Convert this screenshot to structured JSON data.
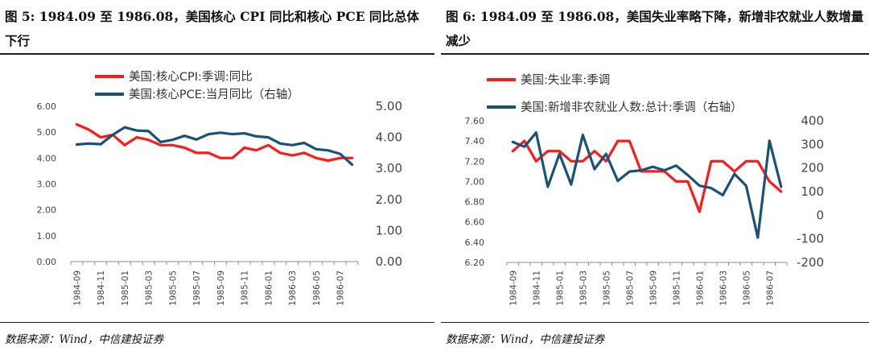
{
  "panels": [
    {
      "title": "图 5: 1984.09 至 1986.08，美国核心 CPI 同比和核心 PCE 同比总体下行",
      "source": "数据来源：Wind，中信建投证券"
    },
    {
      "title": "图 6: 1984.09 至 1986.08，美国失业率略下降，新增非农就业人数增量减少",
      "source": "数据来源：Wind，中信建投证券"
    }
  ],
  "chart_data": [
    {
      "type": "line",
      "x": [
        "1984-09",
        "1984-10",
        "1984-11",
        "1984-12",
        "1985-01",
        "1985-02",
        "1985-03",
        "1985-04",
        "1985-05",
        "1985-06",
        "1985-07",
        "1985-08",
        "1985-09",
        "1985-10",
        "1985-11",
        "1985-12",
        "1986-01",
        "1986-02",
        "1986-03",
        "1986-04",
        "1986-05",
        "1986-06",
        "1986-07",
        "1986-08"
      ],
      "xticks": [
        "1984-09",
        "1984-11",
        "1985-01",
        "1985-03",
        "1985-05",
        "1985-07",
        "1985-09",
        "1985-11",
        "1986-01",
        "1986-03",
        "1986-05",
        "1986-07"
      ],
      "series": [
        {
          "name": "美国:核心CPI:季调:同比",
          "axis": "left",
          "color": "#ff1a1a",
          "values": [
            5.3,
            5.1,
            4.8,
            4.9,
            4.5,
            4.8,
            4.7,
            4.5,
            4.5,
            4.4,
            4.2,
            4.2,
            4.0,
            4.0,
            4.4,
            4.3,
            4.5,
            4.2,
            4.1,
            4.2,
            4.0,
            3.9,
            4.0,
            4.0
          ]
        },
        {
          "name": "美国:核心PCE:当月同比（右轴）",
          "axis": "right",
          "color": "#1a5276",
          "values": [
            3.77,
            3.8,
            3.78,
            4.08,
            4.32,
            4.22,
            4.2,
            3.85,
            3.92,
            4.05,
            3.93,
            4.1,
            4.15,
            4.1,
            4.13,
            4.03,
            4.0,
            3.8,
            3.75,
            3.82,
            3.62,
            3.58,
            3.47,
            3.12
          ]
        }
      ],
      "left_axis": {
        "ticks": [
          "0.00",
          "1.00",
          "2.00",
          "3.00",
          "4.00",
          "5.00",
          "6.00"
        ],
        "min": 0,
        "max": 6
      },
      "right_axis": {
        "ticks": [
          "0.00",
          "1.00",
          "2.00",
          "3.00",
          "4.00",
          "5.00"
        ],
        "min": 0,
        "max": 5
      },
      "legend_position": "top"
    },
    {
      "type": "line",
      "x": [
        "1984-09",
        "1984-10",
        "1984-11",
        "1984-12",
        "1985-01",
        "1985-02",
        "1985-03",
        "1985-04",
        "1985-05",
        "1985-06",
        "1985-07",
        "1985-08",
        "1985-09",
        "1985-10",
        "1985-11",
        "1985-12",
        "1986-01",
        "1986-02",
        "1986-03",
        "1986-04",
        "1986-05",
        "1986-06",
        "1986-07",
        "1986-08"
      ],
      "xticks": [
        "1984-09",
        "1984-11",
        "1985-01",
        "1985-03",
        "1985-05",
        "1985-07",
        "1985-09",
        "1985-11",
        "1986-01",
        "1986-03",
        "1986-05",
        "1986-07"
      ],
      "series": [
        {
          "name": "美国:失业率:季调",
          "axis": "left",
          "color": "#ff1a1a",
          "values": [
            7.3,
            7.4,
            7.2,
            7.3,
            7.3,
            7.2,
            7.2,
            7.3,
            7.2,
            7.4,
            7.4,
            7.1,
            7.1,
            7.1,
            7.0,
            7.0,
            6.7,
            7.2,
            7.2,
            7.1,
            7.2,
            7.2,
            7.0,
            6.9
          ]
        },
        {
          "name": "美国:新增非农就业人数:总计:季调（右轴）",
          "axis": "right",
          "color": "#1a5276",
          "values": [
            310,
            290,
            350,
            120,
            260,
            130,
            340,
            195,
            260,
            145,
            185,
            190,
            205,
            190,
            210,
            170,
            125,
            115,
            85,
            175,
            125,
            -95,
            315,
            120
          ]
        }
      ],
      "left_axis": {
        "ticks": [
          "6.20",
          "6.40",
          "6.60",
          "6.80",
          "7.00",
          "7.20",
          "7.40",
          "7.60"
        ],
        "min": 6.2,
        "max": 7.6
      },
      "right_axis": {
        "ticks": [
          "-200",
          "-100",
          "0",
          "100",
          "200",
          "300",
          "400"
        ],
        "min": -200,
        "max": 400
      },
      "legend_position": "top"
    }
  ]
}
